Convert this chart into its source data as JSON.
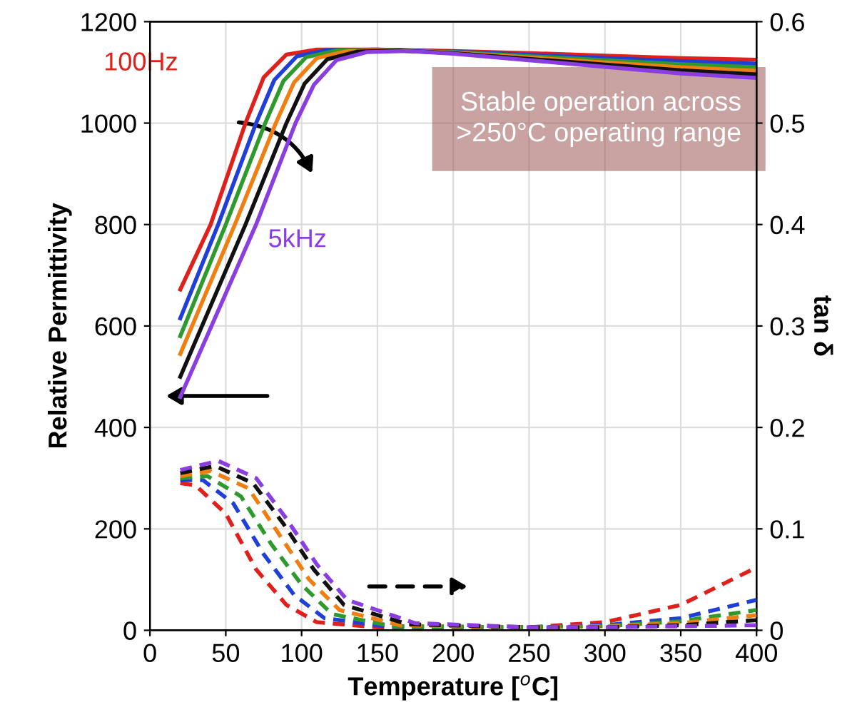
{
  "chart_data": {
    "type": "line",
    "xlabel": "Temperature [$^{o}$C]",
    "ylabel": "Relative Permittivity",
    "y2label": "tan δ",
    "xlim": [
      0,
      400
    ],
    "xticks": [
      0,
      50,
      100,
      150,
      200,
      250,
      300,
      350,
      400
    ],
    "ylim": [
      0,
      1200
    ],
    "yticks": [
      0,
      200,
      400,
      600,
      800,
      1000,
      1200
    ],
    "y2lim": [
      0,
      0.6
    ],
    "y2ticks": [
      0,
      0.1,
      0.2,
      0.3,
      0.4,
      0.5,
      0.6
    ],
    "grid": true,
    "legend": false,
    "marker": "none",
    "annotations": [
      "Stable operation across\n>250°C operating range"
    ],
    "series": [
      {
        "name": "100Hz",
        "color": "#e0201b",
        "line_style": "solid",
        "x": [
          20,
          40,
          63,
          75,
          90,
          110,
          150,
          200,
          250,
          300,
          350,
          400
        ],
        "values": [
          672,
          800,
          1000,
          1090,
          1135,
          1145,
          1145,
          1142,
          1138,
          1133,
          1128,
          1125
        ]
      },
      {
        "color": "#1f3fd8",
        "line_style": "solid",
        "x": [
          20,
          45,
          70,
          82,
          97,
          117,
          150,
          200,
          350,
          400
        ],
        "values": [
          615,
          800,
          1000,
          1085,
          1132,
          1144,
          1145,
          1141,
          1122,
          1117
        ]
      },
      {
        "color": "#2e9a2e",
        "line_style": "solid",
        "x": [
          20,
          50,
          76,
          88,
          103,
          123,
          150,
          200,
          350,
          400
        ],
        "values": [
          580,
          800,
          1000,
          1083,
          1130,
          1143,
          1144,
          1140,
          1116,
          1110
        ]
      },
      {
        "color": "#f07f12",
        "line_style": "solid",
        "x": [
          20,
          56,
          83,
          95,
          110,
          130,
          160,
          200,
          350,
          400
        ],
        "values": [
          545,
          800,
          1000,
          1080,
          1128,
          1142,
          1144,
          1139,
          1110,
          1103
        ]
      },
      {
        "color": "#111111",
        "line_style": "solid",
        "x": [
          20,
          63,
          90,
          102,
          117,
          137,
          165,
          200,
          350,
          400
        ],
        "values": [
          500,
          800,
          1000,
          1078,
          1126,
          1141,
          1143,
          1138,
          1104,
          1096
        ]
      },
      {
        "name": "5kHz",
        "color": "#8a3ee0",
        "line_style": "solid",
        "x": [
          20,
          70,
          96,
          108,
          123,
          143,
          170,
          200,
          350,
          400
        ],
        "values": [
          460,
          800,
          1000,
          1075,
          1124,
          1140,
          1142,
          1137,
          1098,
          1089
        ]
      },
      {
        "axis": "y2",
        "color": "#e0201b",
        "line_style": "dashed",
        "x": [
          20,
          30,
          50,
          70,
          90,
          110,
          150,
          250,
          300,
          350,
          400
        ],
        "values": [
          0.145,
          0.143,
          0.115,
          0.06,
          0.025,
          0.008,
          0.003,
          0.003,
          0.008,
          0.025,
          0.062
        ]
      },
      {
        "axis": "y2",
        "color": "#1f3fd8",
        "line_style": "dashed",
        "x": [
          20,
          35,
          55,
          75,
          95,
          115,
          155,
          250,
          300,
          350,
          400
        ],
        "values": [
          0.148,
          0.148,
          0.125,
          0.075,
          0.035,
          0.012,
          0.004,
          0.003,
          0.005,
          0.012,
          0.03
        ]
      },
      {
        "axis": "y2",
        "color": "#2e9a2e",
        "line_style": "dashed",
        "x": [
          20,
          38,
          60,
          80,
          100,
          120,
          160,
          250,
          300,
          350,
          400
        ],
        "values": [
          0.15,
          0.152,
          0.132,
          0.085,
          0.045,
          0.016,
          0.004,
          0.003,
          0.004,
          0.009,
          0.02
        ]
      },
      {
        "axis": "y2",
        "color": "#f07f12",
        "line_style": "dashed",
        "x": [
          20,
          40,
          65,
          85,
          105,
          125,
          165,
          250,
          300,
          350,
          400
        ],
        "values": [
          0.152,
          0.157,
          0.14,
          0.095,
          0.05,
          0.02,
          0.005,
          0.003,
          0.004,
          0.007,
          0.015
        ]
      },
      {
        "axis": "y2",
        "color": "#111111",
        "line_style": "dashed",
        "x": [
          20,
          43,
          68,
          88,
          108,
          128,
          170,
          250,
          300,
          350,
          400
        ],
        "values": [
          0.155,
          0.162,
          0.145,
          0.105,
          0.06,
          0.025,
          0.006,
          0.003,
          0.003,
          0.005,
          0.01
        ]
      },
      {
        "axis": "y2",
        "color": "#8a3ee0",
        "line_style": "dashed",
        "x": [
          20,
          45,
          70,
          90,
          110,
          130,
          175,
          250,
          300,
          350,
          400
        ],
        "values": [
          0.158,
          0.167,
          0.15,
          0.11,
          0.065,
          0.03,
          0.007,
          0.003,
          0.003,
          0.004,
          0.005
        ]
      }
    ]
  }
}
